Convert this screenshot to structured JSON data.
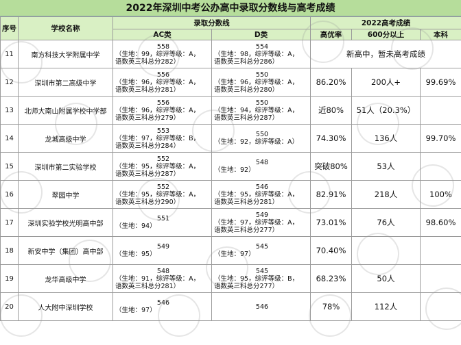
{
  "title": "2022年深圳中考公办高中录取分数线与高考成绩",
  "headers": {
    "id": "序号",
    "school": "学校名称",
    "admission_group": "录取分数线",
    "gaokao_group": "2022高考成绩",
    "ac": "AC类",
    "d": "D类",
    "excellence": "高优率",
    "above600": "600分以上",
    "undergrad": "本科"
  },
  "rows": [
    {
      "id": "11",
      "school": "南方科技大学附属中学",
      "ac": {
        "main": "558",
        "l1": "（生地：99，综评等级：A，",
        "l2": "语数英三科总分282）"
      },
      "d": {
        "main": "554",
        "l1": "（生地：98，综评等级：A，",
        "l2": "语数英三科总分286）"
      },
      "note": "新高中，暂未高考成绩",
      "excellence": "",
      "above600": "",
      "undergrad": ""
    },
    {
      "id": "12",
      "school": "深圳市第二高级中学",
      "ac": {
        "main": "556",
        "l1": "（生地：96，综评等级：A，",
        "l2": "语数英三科总分281）"
      },
      "d": {
        "main": "550",
        "l1": "（生地：96，综评等级：A，",
        "l2": "语数英三科总分280）"
      },
      "note": "",
      "excellence": "86.20%",
      "above600": "200人+",
      "undergrad": "99.69%"
    },
    {
      "id": "13",
      "school": "北师大南山附属学校中学部",
      "ac": {
        "main": "556",
        "l1": "（生地：96，综评等级：A，",
        "l2": "语数英三科总分279）"
      },
      "d": {
        "main": "550",
        "l1": "（生地：94，综评等级：A，",
        "l2": "语数英三科总分287）"
      },
      "note": "",
      "excellence": "近80%",
      "above600": "51人（20.3%）",
      "undergrad": ""
    },
    {
      "id": "14",
      "school": "龙城高级中学",
      "ac": {
        "main": "553",
        "l1": "（生地：97，综评等级：B，",
        "l2": "语数英三科总分284）"
      },
      "d": {
        "main": "550",
        "l1": "（生地：92，综评等级：A）",
        "l2": ""
      },
      "note": "",
      "excellence": "74.30%",
      "above600": "136人",
      "undergrad": "99.70%"
    },
    {
      "id": "15",
      "school": "深圳市第二实验学校",
      "ac": {
        "main": "552",
        "l1": "（生地：95，综评等级：A，",
        "l2": "语数英三科总分287）"
      },
      "d": {
        "main": "548",
        "l1": "（生地：92）",
        "l2": ""
      },
      "note": "",
      "excellence": "突破80%",
      "above600": "53人",
      "undergrad": ""
    },
    {
      "id": "16",
      "school": "翠园中学",
      "ac": {
        "main": "552",
        "l1": "（生地：95，综评等级：A，",
        "l2": "语数英三科总分290）"
      },
      "d": {
        "main": "546",
        "l1": "（生地：95，综评等级：A，",
        "l2": "语数英三科总分281）"
      },
      "note": "",
      "excellence": "82.91%",
      "above600": "218人",
      "undergrad": "100%"
    },
    {
      "id": "17",
      "school": "深圳实验学校光明高中部",
      "ac": {
        "main": "551",
        "l1": "（生地：94）",
        "l2": ""
      },
      "d": {
        "main": "549",
        "l1": "（生地：97，综评等级：A，",
        "l2": "语数英三科总分277）"
      },
      "note": "",
      "excellence": "73.01%",
      "above600": "76人",
      "undergrad": "98.60%"
    },
    {
      "id": "18",
      "school": "新安中学（集团）高中部",
      "ac": {
        "main": "549",
        "l1": "（生地：95）",
        "l2": ""
      },
      "d": {
        "main": "545",
        "l1": "（生地：97）",
        "l2": ""
      },
      "note": "",
      "excellence": "70.40%",
      "above600": "",
      "undergrad": ""
    },
    {
      "id": "19",
      "school": "龙华高级中学",
      "ac": {
        "main": "548",
        "l1": "（生地：91，综评等级：A，",
        "l2": "语数英三科总分281）"
      },
      "d": {
        "main": "545",
        "l1": "（生地：95，综评等级：B，",
        "l2": "语数英三科总分277）"
      },
      "note": "",
      "excellence": "68.23%",
      "above600": "50人",
      "undergrad": ""
    },
    {
      "id": "20",
      "school": "人大附中深圳学校",
      "ac": {
        "main": "546",
        "l1": "（生地：97）",
        "l2": ""
      },
      "d": {
        "main": "546",
        "l1": "",
        "l2": ""
      },
      "note": "",
      "excellence": "78%",
      "above600": "112人",
      "undergrad": ""
    }
  ],
  "watermark_text": "青青深学规划"
}
